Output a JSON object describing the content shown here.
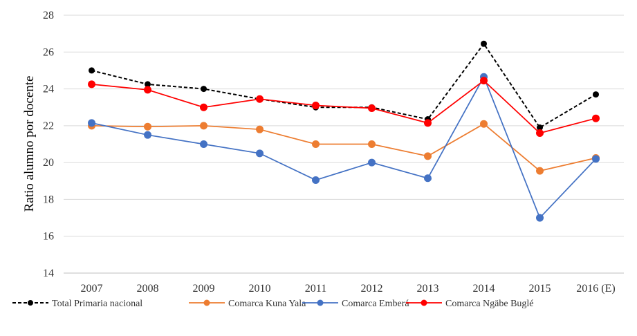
{
  "chart_data": {
    "type": "line",
    "title": "",
    "xlabel": "",
    "ylabel": "Ratio alumno por docente",
    "ylim": [
      14,
      28
    ],
    "yticks": [
      14,
      16,
      18,
      20,
      22,
      24,
      26,
      28
    ],
    "grid": true,
    "legend_position": "bottom",
    "categories": [
      "2007",
      "2008",
      "2009",
      "2010",
      "2011",
      "2012",
      "2013",
      "2014",
      "2015",
      "2016 (E)"
    ],
    "series": [
      {
        "name": "Total Primaria nacional",
        "color": "#000000",
        "dashed": true,
        "values": [
          25.0,
          24.25,
          24.0,
          23.45,
          23.0,
          23.0,
          22.35,
          26.45,
          21.9,
          23.7
        ]
      },
      {
        "name": "Comarca Kuna Yala",
        "color": "#ed7d31",
        "dashed": false,
        "values": [
          22.0,
          21.95,
          22.0,
          21.8,
          21.0,
          21.0,
          20.35,
          22.1,
          19.55,
          20.25
        ]
      },
      {
        "name": "Comarca Emberá",
        "color": "#4472c4",
        "dashed": false,
        "values": [
          22.15,
          21.5,
          21.0,
          20.5,
          19.05,
          20.0,
          19.15,
          24.65,
          17.0,
          20.2
        ]
      },
      {
        "name": "Comarca Ngäbe Buglé",
        "color": "#ff0000",
        "dashed": false,
        "values": [
          24.25,
          23.95,
          23.0,
          23.45,
          23.1,
          22.95,
          22.15,
          24.45,
          21.6,
          22.4
        ]
      }
    ]
  }
}
